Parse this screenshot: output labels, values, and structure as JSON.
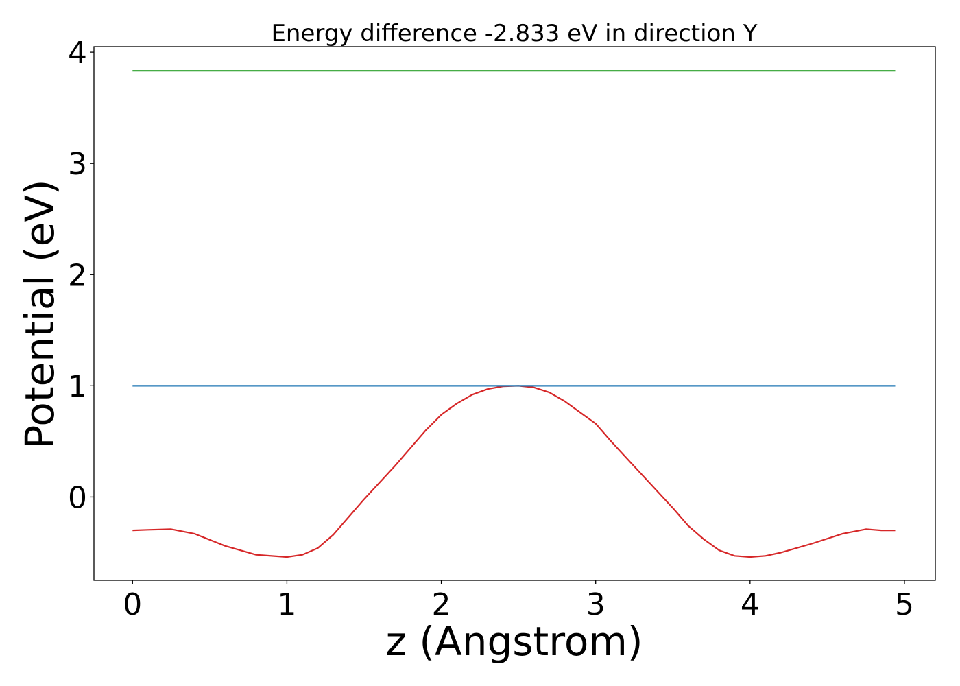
{
  "chart_data": {
    "type": "line",
    "title": "Energy difference -2.833 eV in direction Y",
    "xlabel": "z (Angstrom)",
    "ylabel": "Potential (eV)",
    "xlim": [
      -0.25,
      5.2
    ],
    "ylim": [
      -0.75,
      4.05
    ],
    "xticks": [
      0,
      1,
      2,
      3,
      4,
      5
    ],
    "yticks": [
      0,
      1,
      2,
      3,
      4
    ],
    "grid": false,
    "legend": "none",
    "series": [
      {
        "color": "#d62728",
        "x": [
          0,
          0.1,
          0.25,
          0.4,
          0.6,
          0.8,
          1.0,
          1.1,
          1.2,
          1.3,
          1.4,
          1.5,
          1.7,
          1.9,
          2.0,
          2.1,
          2.2,
          2.3,
          2.4,
          2.5,
          2.6,
          2.7,
          2.8,
          2.9,
          3.0,
          3.1,
          3.2,
          3.3,
          3.5,
          3.6,
          3.7,
          3.8,
          3.9,
          4.0,
          4.1,
          4.2,
          4.4,
          4.6,
          4.75,
          4.85,
          4.94
        ],
        "y": [
          -0.3,
          -0.295,
          -0.29,
          -0.33,
          -0.44,
          -0.52,
          -0.54,
          -0.52,
          -0.46,
          -0.34,
          -0.18,
          -0.02,
          0.28,
          0.6,
          0.74,
          0.84,
          0.92,
          0.97,
          0.995,
          1.0,
          0.985,
          0.94,
          0.86,
          0.76,
          0.66,
          0.5,
          0.35,
          0.2,
          -0.1,
          -0.26,
          -0.38,
          -0.48,
          -0.53,
          -0.54,
          -0.53,
          -0.5,
          -0.42,
          -0.33,
          -0.29,
          -0.3,
          -0.3
        ]
      },
      {
        "color": "#1f77b4",
        "x": [
          0,
          4.94
        ],
        "y": [
          1.0,
          1.0
        ]
      },
      {
        "color": "#2ca02c",
        "x": [
          0,
          4.94
        ],
        "y": [
          3.833,
          3.833
        ]
      }
    ]
  }
}
